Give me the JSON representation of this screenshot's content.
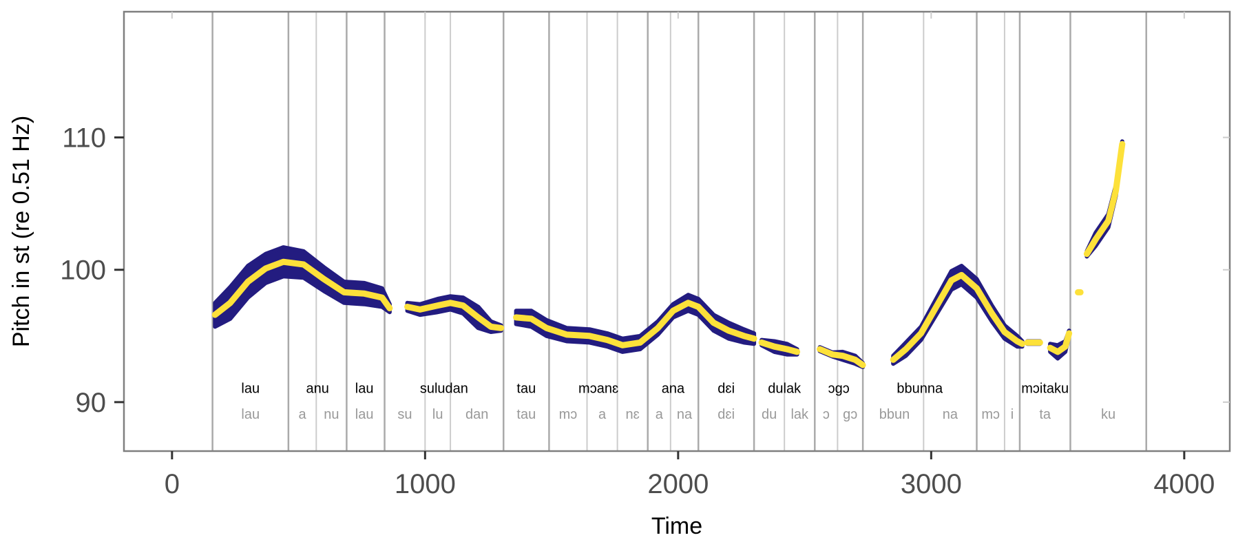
{
  "chart_data": {
    "type": "line",
    "xlabel": "Time",
    "ylabel": "Pitch in st (re 0.51 Hz)",
    "xlim": [
      -190,
      4180
    ],
    "ylim": [
      86.3,
      119.5
    ],
    "xticks": [
      {
        "value": 0,
        "label": "0"
      },
      {
        "value": 1000,
        "label": "1000"
      },
      {
        "value": 2000,
        "label": "2000"
      },
      {
        "value": 3000,
        "label": "3000"
      },
      {
        "value": 4000,
        "label": "4000"
      }
    ],
    "yticks": [
      {
        "value": 90,
        "label": "90"
      },
      {
        "value": 100,
        "label": "100"
      },
      {
        "value": 110,
        "label": "110"
      }
    ],
    "colors": {
      "band": "#231c80",
      "curve": "#fde13a",
      "boundary_word": "#aaaaaa",
      "boundary_syllable": "#cccccc",
      "panel_border": "#7f7f7f",
      "tick": "#333333"
    },
    "word_boundaries": [
      160,
      460,
      690,
      840,
      1310,
      1490,
      1880,
      2080,
      2300,
      2540,
      2730,
      3180,
      3350,
      3550,
      3850
    ],
    "syllable_boundaries": [
      570,
      1000,
      1100,
      1640,
      1760,
      1970,
      2420,
      2630,
      2970,
      3290
    ],
    "word_labels": [
      {
        "text": "lau",
        "x": 310
      },
      {
        "text": "anu",
        "x": 575
      },
      {
        "text": "lau",
        "x": 760
      },
      {
        "text": "suludan",
        "x": 1075
      },
      {
        "text": "tau",
        "x": 1400
      },
      {
        "text": "mɔanɛ",
        "x": 1685
      },
      {
        "text": "ana",
        "x": 1980
      },
      {
        "text": "dɛi",
        "x": 2190
      },
      {
        "text": "dulak",
        "x": 2420
      },
      {
        "text": "ɔgɔ",
        "x": 2635
      },
      {
        "text": "bbunna",
        "x": 2955
      },
      {
        "text": "mɔitaku",
        "x": 3450
      }
    ],
    "syllable_labels": [
      {
        "text": "lau",
        "x": 310
      },
      {
        "text": "a",
        "x": 515
      },
      {
        "text": "nu",
        "x": 630
      },
      {
        "text": "lau",
        "x": 760
      },
      {
        "text": "su",
        "x": 920
      },
      {
        "text": "lu",
        "x": 1050
      },
      {
        "text": "dan",
        "x": 1205
      },
      {
        "text": "tau",
        "x": 1400
      },
      {
        "text": "mɔ",
        "x": 1565
      },
      {
        "text": "a",
        "x": 1700
      },
      {
        "text": "nɛ",
        "x": 1820
      },
      {
        "text": "a",
        "x": 1925
      },
      {
        "text": "na",
        "x": 2025
      },
      {
        "text": "dɛi",
        "x": 2190
      },
      {
        "text": "du",
        "x": 2360
      },
      {
        "text": "lak",
        "x": 2480
      },
      {
        "text": "ɔ",
        "x": 2585
      },
      {
        "text": "gɔ",
        "x": 2680
      },
      {
        "text": "bbun",
        "x": 2855
      },
      {
        "text": "na",
        "x": 3075
      },
      {
        "text": "mɔ",
        "x": 3235
      },
      {
        "text": "i",
        "x": 3320
      },
      {
        "text": "ta",
        "x": 3450
      },
      {
        "text": "ku",
        "x": 3700
      }
    ],
    "segments": [
      {
        "points": [
          [
            170,
            96.6,
            0.9
          ],
          [
            230,
            97.5,
            1.2
          ],
          [
            300,
            99.1,
            1.2
          ],
          [
            370,
            100.1,
            1.1
          ],
          [
            440,
            100.6,
            1.1
          ],
          [
            520,
            100.4,
            1.0
          ],
          [
            600,
            99.3,
            0.9
          ],
          [
            680,
            98.3,
            0.8
          ],
          [
            760,
            98.2,
            0.8
          ],
          [
            830,
            97.9,
            0.7
          ],
          [
            860,
            97.1,
            0.3
          ]
        ]
      },
      {
        "points": [
          [
            930,
            97.2,
            0.3
          ],
          [
            980,
            97.0,
            0.4
          ],
          [
            1050,
            97.3,
            0.5
          ],
          [
            1100,
            97.5,
            0.5
          ],
          [
            1150,
            97.3,
            0.6
          ],
          [
            1210,
            96.4,
            0.8
          ],
          [
            1260,
            95.7,
            0.4
          ],
          [
            1300,
            95.6,
            0.2
          ]
        ]
      },
      {
        "points": [
          [
            1360,
            96.4,
            0.5
          ],
          [
            1420,
            96.3,
            0.6
          ],
          [
            1480,
            95.6,
            0.6
          ],
          [
            1560,
            95.1,
            0.5
          ],
          [
            1650,
            95.0,
            0.5
          ],
          [
            1720,
            94.7,
            0.5
          ],
          [
            1780,
            94.3,
            0.5
          ],
          [
            1850,
            94.5,
            0.5
          ],
          [
            1920,
            95.6,
            0.5
          ],
          [
            1980,
            96.9,
            0.5
          ],
          [
            2040,
            97.5,
            0.6
          ],
          [
            2080,
            97.2,
            0.6
          ],
          [
            2140,
            96.0,
            0.6
          ],
          [
            2200,
            95.4,
            0.6
          ],
          [
            2260,
            95.0,
            0.5
          ],
          [
            2300,
            94.8,
            0.4
          ]
        ]
      },
      {
        "points": [
          [
            2330,
            94.5,
            0.2
          ],
          [
            2380,
            94.2,
            0.4
          ],
          [
            2430,
            94.0,
            0.4
          ],
          [
            2470,
            93.8,
            0.2
          ]
        ]
      },
      {
        "points": [
          [
            2560,
            94.0,
            0.15
          ],
          [
            2610,
            93.6,
            0.15
          ],
          [
            2650,
            93.5,
            0.3
          ],
          [
            2700,
            93.2,
            0.3
          ],
          [
            2730,
            92.8,
            0.15
          ]
        ]
      },
      {
        "points": [
          [
            2850,
            93.2,
            0.3
          ],
          [
            2900,
            94.0,
            0.5
          ],
          [
            2960,
            95.2,
            0.5
          ],
          [
            3020,
            97.2,
            0.6
          ],
          [
            3080,
            99.2,
            0.7
          ],
          [
            3120,
            99.6,
            0.7
          ],
          [
            3180,
            98.6,
            0.7
          ],
          [
            3240,
            96.7,
            0.6
          ],
          [
            3290,
            95.3,
            0.5
          ],
          [
            3340,
            94.6,
            0.4
          ],
          [
            3360,
            94.4,
            0.2
          ]
        ]
      },
      {
        "points": [
          [
            3380,
            94.5,
            0.1
          ],
          [
            3430,
            94.5,
            0.1
          ]
        ]
      },
      {
        "points": [
          [
            3470,
            94.1,
            0.3
          ],
          [
            3500,
            93.8,
            0.5
          ],
          [
            3530,
            94.2,
            0.4
          ],
          [
            3545,
            95.2,
            0.2
          ]
        ]
      },
      {
        "points": [
          [
            3580,
            98.3,
            0.05
          ],
          [
            3590,
            98.3,
            0.05
          ]
        ]
      },
      {
        "points": [
          [
            3615,
            101.2,
            0.2
          ],
          [
            3650,
            102.3,
            0.5
          ],
          [
            3700,
            103.7,
            0.5
          ],
          [
            3730,
            106.0,
            0.4
          ],
          [
            3755,
            109.5,
            0.2
          ]
        ]
      }
    ]
  }
}
